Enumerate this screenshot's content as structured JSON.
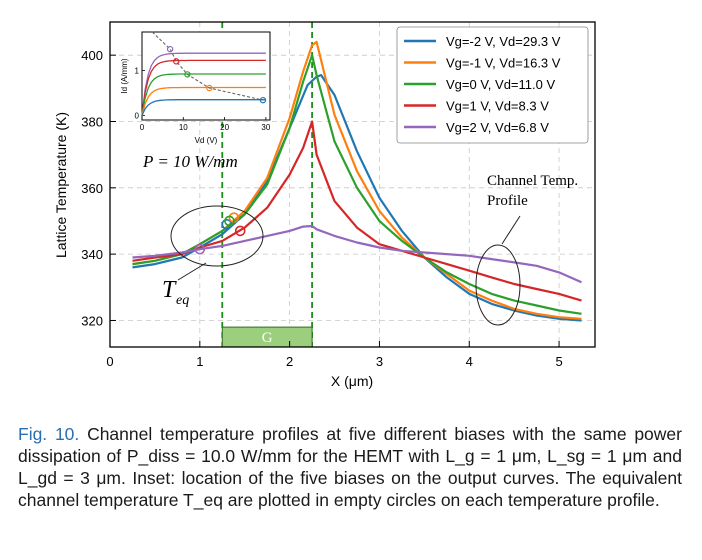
{
  "chart_data": {
    "type": "line",
    "xlabel": "X (μm)",
    "ylabel": "Lattice Temperature (K)",
    "xlim": [
      0,
      5.4
    ],
    "ylim": [
      312,
      410
    ],
    "xticks": [
      0,
      1,
      2,
      3,
      4,
      5
    ],
    "yticks": [
      320,
      340,
      360,
      380,
      400
    ],
    "grid": true,
    "legend_position": "top-right",
    "series": [
      {
        "name": "Vg=-2 V, Vd=29.3 V",
        "color": "#1f77b4",
        "x": [
          0.25,
          0.5,
          0.8,
          1.0,
          1.25,
          1.5,
          1.75,
          2.0,
          2.2,
          2.3,
          2.35,
          2.5,
          2.75,
          3.0,
          3.25,
          3.5,
          3.75,
          4.0,
          4.25,
          4.5,
          4.75,
          5.0,
          5.25
        ],
        "y": [
          336,
          337,
          339,
          342,
          346,
          352,
          362,
          378,
          391,
          393.5,
          394,
          388,
          371,
          357,
          347,
          339,
          333,
          328,
          325,
          323,
          321.5,
          320.5,
          320
        ],
        "teq": {
          "x": 1.3,
          "y": 349
        }
      },
      {
        "name": "Vg=-1 V, Vd=16.3 V",
        "color": "#ff7f0e",
        "x": [
          0.25,
          0.5,
          0.8,
          1.0,
          1.25,
          1.5,
          1.75,
          2.0,
          2.15,
          2.25,
          2.3,
          2.5,
          2.75,
          3.0,
          3.25,
          3.5,
          3.75,
          4.0,
          4.25,
          4.5,
          4.75,
          5.0,
          5.25
        ],
        "y": [
          337,
          338,
          340,
          343,
          347,
          353,
          363,
          381,
          395,
          403,
          404,
          382,
          365,
          353,
          345,
          339,
          334,
          329,
          326,
          323.5,
          322,
          321,
          320.5
        ],
        "teq": {
          "x": 1.38,
          "y": 351
        }
      },
      {
        "name": "Vg=0 V, Vd=11.0 V",
        "color": "#2ca02c",
        "x": [
          0.25,
          0.5,
          0.8,
          1.0,
          1.25,
          1.5,
          1.75,
          2.0,
          2.15,
          2.25,
          2.3,
          2.5,
          2.75,
          3.0,
          3.25,
          3.5,
          3.75,
          4.0,
          4.25,
          4.5,
          4.75,
          5.0,
          5.25
        ],
        "y": [
          337,
          338,
          340,
          343,
          347,
          352,
          361,
          378,
          392,
          400,
          394,
          374,
          360,
          350,
          344,
          339,
          334.5,
          331,
          328,
          326,
          324.5,
          323,
          322
        ],
        "teq": {
          "x": 1.33,
          "y": 350
        }
      },
      {
        "name": "Vg=1 V, Vd=8.3 V",
        "color": "#d62728",
        "x": [
          0.25,
          0.5,
          0.8,
          1.0,
          1.25,
          1.5,
          1.75,
          2.0,
          2.15,
          2.25,
          2.3,
          2.5,
          2.75,
          3.0,
          3.25,
          3.5,
          3.75,
          4.0,
          4.25,
          4.5,
          4.75,
          5.0,
          5.25
        ],
        "y": [
          338,
          339,
          340,
          342,
          344,
          348,
          354,
          364,
          372,
          380,
          370,
          356,
          348,
          343,
          341,
          339,
          337,
          335,
          333,
          331,
          329.5,
          328,
          326
        ],
        "teq": {
          "x": 1.45,
          "y": 347
        }
      },
      {
        "name": "Vg=2 V, Vd=6.8 V",
        "color": "#9467bd",
        "x": [
          0.25,
          0.5,
          0.8,
          1.0,
          1.25,
          1.5,
          1.75,
          2.0,
          2.15,
          2.25,
          2.3,
          2.5,
          2.75,
          3.0,
          3.25,
          3.5,
          3.75,
          4.0,
          4.25,
          4.5,
          4.75,
          5.0,
          5.25
        ],
        "y": [
          339,
          339.5,
          340.5,
          341.5,
          342.5,
          344,
          345.5,
          347,
          348.3,
          348.5,
          347.5,
          345.5,
          343.5,
          342,
          341,
          340.5,
          340,
          339.5,
          338.5,
          337.5,
          336.5,
          334.5,
          331.5
        ],
        "teq": {
          "x": 1.0,
          "y": 341.5
        }
      }
    ],
    "gate_lines_x": [
      1.25,
      2.25
    ],
    "gate_label": "G",
    "gate_bar": {
      "x": [
        1.25,
        2.25
      ],
      "y": [
        312,
        318
      ]
    },
    "annotations": {
      "power": "P = 10 W/mm",
      "teq_label": "T",
      "teq_sub": "eq",
      "channel_label_line1": "Channel Temp.",
      "channel_label_line2": "Profile"
    },
    "inset": {
      "xlabel": "Vd (V)",
      "ylabel": "Id (A/mm)",
      "xlim": [
        0,
        31
      ],
      "ylim": [
        -0.1,
        1.85
      ],
      "xticks": [
        0,
        10,
        20,
        30
      ],
      "yticks": [
        0,
        1
      ],
      "curves": [
        {
          "color": "#9467bd",
          "plateau": 1.38
        },
        {
          "color": "#d62728",
          "plateau": 1.22
        },
        {
          "color": "#2ca02c",
          "plateau": 0.92
        },
        {
          "color": "#ff7f0e",
          "plateau": 0.62
        },
        {
          "color": "#1f77b4",
          "plateau": 0.35
        }
      ],
      "bias_points": [
        {
          "vd": 6.8,
          "id": 1.47,
          "color": "#9467bd"
        },
        {
          "vd": 8.3,
          "id": 1.2,
          "color": "#d62728"
        },
        {
          "vd": 11.0,
          "id": 0.91,
          "color": "#2ca02c"
        },
        {
          "vd": 16.3,
          "id": 0.61,
          "color": "#ff7f0e"
        },
        {
          "vd": 29.3,
          "id": 0.34,
          "color": "#1f77b4"
        }
      ]
    }
  },
  "caption": {
    "label": "Fig. 10.",
    "text": "Channel temperature profiles at five different biases with the same power dissipation of P_diss = 10.0 W/mm for the HEMT with L_g = 1 μm, L_sg = 1 μm and L_gd = 3 μm. Inset: location of the five biases on the output curves. The equivalent channel temperature T_eq are plotted in empty circles on each temperature profile."
  }
}
